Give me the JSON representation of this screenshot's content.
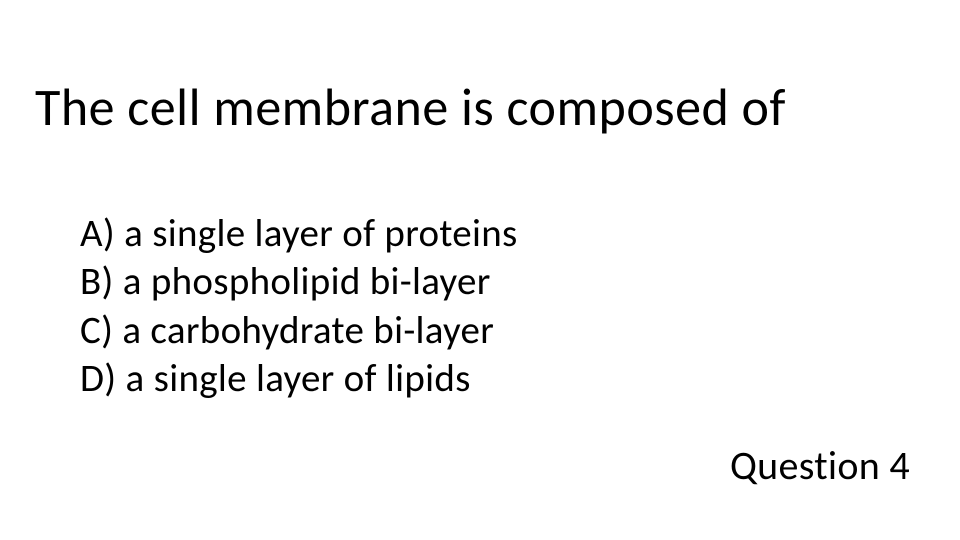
{
  "question": {
    "title": "The cell membrane is composed of",
    "options": [
      "A) a single layer of proteins",
      "B) a phospholipid bi-layer",
      "C) a carbohydrate bi-layer",
      "D) a single layer of lipids"
    ],
    "number_label": "Question 4"
  },
  "styling": {
    "background_color": "#ffffff",
    "text_color": "#000000",
    "title_fontsize": 52,
    "option_fontsize": 39,
    "number_fontsize": 40,
    "font_family": "Calibri"
  }
}
